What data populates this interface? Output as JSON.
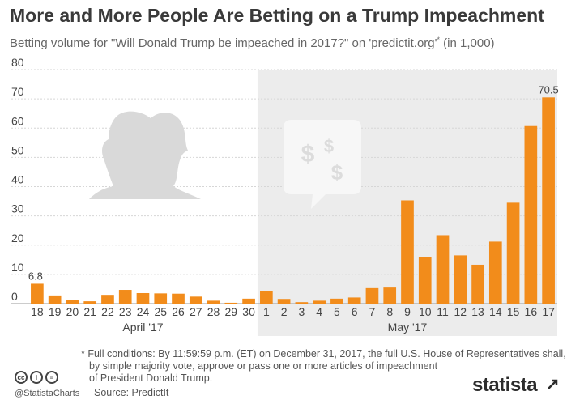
{
  "title": "More and More People Are Betting on a Trump Impeachment",
  "subtitle": "Betting volume for \"Will Donald Trump be impeached in 2017?\" on 'predictit.org'",
  "subtitle_marker": "*",
  "subtitle_unit": "(in 1,000)",
  "chart_data": {
    "type": "bar",
    "categories": [
      "18",
      "19",
      "20",
      "21",
      "22",
      "23",
      "24",
      "25",
      "26",
      "27",
      "28",
      "29",
      "30",
      "1",
      "2",
      "3",
      "4",
      "5",
      "6",
      "7",
      "8",
      "9",
      "10",
      "11",
      "12",
      "13",
      "14",
      "15",
      "16",
      "17"
    ],
    "values": [
      6.8,
      2.8,
      1.3,
      0.8,
      3.0,
      4.7,
      3.6,
      3.5,
      3.4,
      2.4,
      1.0,
      0.3,
      1.7,
      4.4,
      1.6,
      0.5,
      1.0,
      1.7,
      2.1,
      5.3,
      5.5,
      35.3,
      15.9,
      23.4,
      16.5,
      13.3,
      21.2,
      34.5,
      60.7,
      70.5
    ],
    "value_labels": {
      "0": "6.8",
      "29": "70.5"
    },
    "ylim": [
      0,
      80
    ],
    "yticks": [
      0,
      10,
      20,
      30,
      40,
      50,
      60,
      70,
      80
    ],
    "month_groups": [
      {
        "label": "April '17",
        "start": 0,
        "end": 12
      },
      {
        "label": "May '17",
        "start": 13,
        "end": 29
      }
    ],
    "highlight_range": [
      13,
      29
    ],
    "grid": true,
    "bar_color": "#f28c1b",
    "highlight_color": "#ececec",
    "gridline_color": "#d6d6d6"
  },
  "footnote": {
    "lines": [
      "* Full conditions: By 11:59:59 p.m. (ET) on December 31, 2017, the full U.S. House of Representatives shall,",
      "by simple majority vote, approve or pass one or more articles of impeachment",
      "of President Donald Trump."
    ]
  },
  "license_icons": [
    "cc-icon",
    "person-icon",
    "equals-icon"
  ],
  "license_marks": {
    "cc": "cc",
    "by": "i",
    "nd": "="
  },
  "handle": "@StatistaCharts",
  "source": "Source: PredictIt",
  "brand": "statista",
  "illustrations": [
    "trump-silhouette-icon",
    "speech-bubble-dollar-icon"
  ],
  "illustration_text": "$ $ $"
}
